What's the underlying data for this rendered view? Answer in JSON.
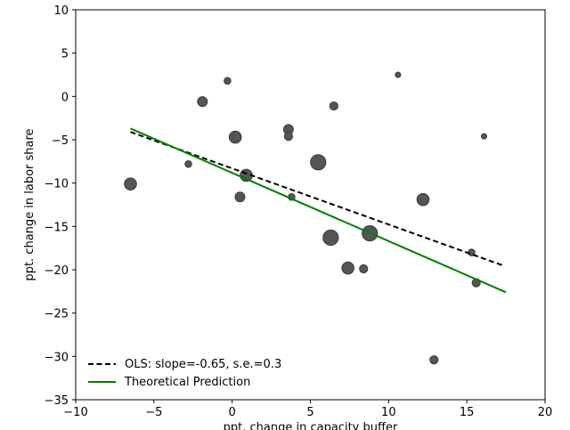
{
  "chart_data": {
    "type": "scatter",
    "title": "",
    "xlabel": "ppt. change in capacity buffer",
    "ylabel": "ppt. change in labor share",
    "xlim": [
      -10,
      20
    ],
    "ylim": [
      -35,
      10
    ],
    "x_ticks": [
      -10,
      -5,
      0,
      5,
      10,
      15,
      20
    ],
    "y_ticks": [
      -35,
      -30,
      -25,
      -20,
      -15,
      -10,
      -5,
      0,
      5,
      10
    ],
    "x_tick_labels": [
      "−10",
      "−5",
      "0",
      "5",
      "10",
      "15",
      "20"
    ],
    "y_tick_labels": [
      "−35",
      "−30",
      "−25",
      "−20",
      "−15",
      "−10",
      "−5",
      "0",
      "5",
      "10"
    ],
    "grid": false,
    "legend_position": "lower-left",
    "points": [
      {
        "x": -6.5,
        "y": -10.1,
        "size": "large"
      },
      {
        "x": -2.8,
        "y": -7.8,
        "size": "small"
      },
      {
        "x": -1.9,
        "y": -0.6,
        "size": "medium"
      },
      {
        "x": -0.3,
        "y": 1.8,
        "size": "small"
      },
      {
        "x": 0.2,
        "y": -4.7,
        "size": "large"
      },
      {
        "x": 0.5,
        "y": -11.6,
        "size": "medium"
      },
      {
        "x": 0.9,
        "y": -9.1,
        "size": "large"
      },
      {
        "x": 3.6,
        "y": -3.8,
        "size": "medium"
      },
      {
        "x": 3.6,
        "y": -4.6,
        "size": "small-medium"
      },
      {
        "x": 3.8,
        "y": -11.6,
        "size": "small"
      },
      {
        "x": 5.5,
        "y": -7.6,
        "size": "xlarge"
      },
      {
        "x": 6.3,
        "y": -16.3,
        "size": "xlarge"
      },
      {
        "x": 6.5,
        "y": -1.1,
        "size": "small-medium"
      },
      {
        "x": 7.4,
        "y": -19.8,
        "size": "large"
      },
      {
        "x": 8.4,
        "y": -19.9,
        "size": "small-medium"
      },
      {
        "x": 8.8,
        "y": -15.8,
        "size": "xlarge"
      },
      {
        "x": 10.6,
        "y": 2.5,
        "size": "xsmall"
      },
      {
        "x": 12.2,
        "y": -11.9,
        "size": "large"
      },
      {
        "x": 12.9,
        "y": -30.4,
        "size": "small-medium"
      },
      {
        "x": 15.3,
        "y": -18.0,
        "size": "small"
      },
      {
        "x": 15.6,
        "y": -21.5,
        "size": "small-medium"
      },
      {
        "x": 16.1,
        "y": -4.6,
        "size": "xsmall"
      }
    ],
    "series": [
      {
        "name": "OLS: slope=-0.65, s.e.=0.3",
        "type": "line",
        "style": "dashed",
        "color": "#000000",
        "x": [
          -6.5,
          17.3
        ],
        "y": [
          -4.1,
          -19.5
        ]
      },
      {
        "name": "Theoretical Prediction",
        "type": "line",
        "style": "solid",
        "color": "#008000",
        "x": [
          -6.5,
          17.5
        ],
        "y": [
          -3.7,
          -22.6
        ]
      }
    ],
    "marker_color": "#555555",
    "marker_edge_color": "#3a3a3a"
  }
}
